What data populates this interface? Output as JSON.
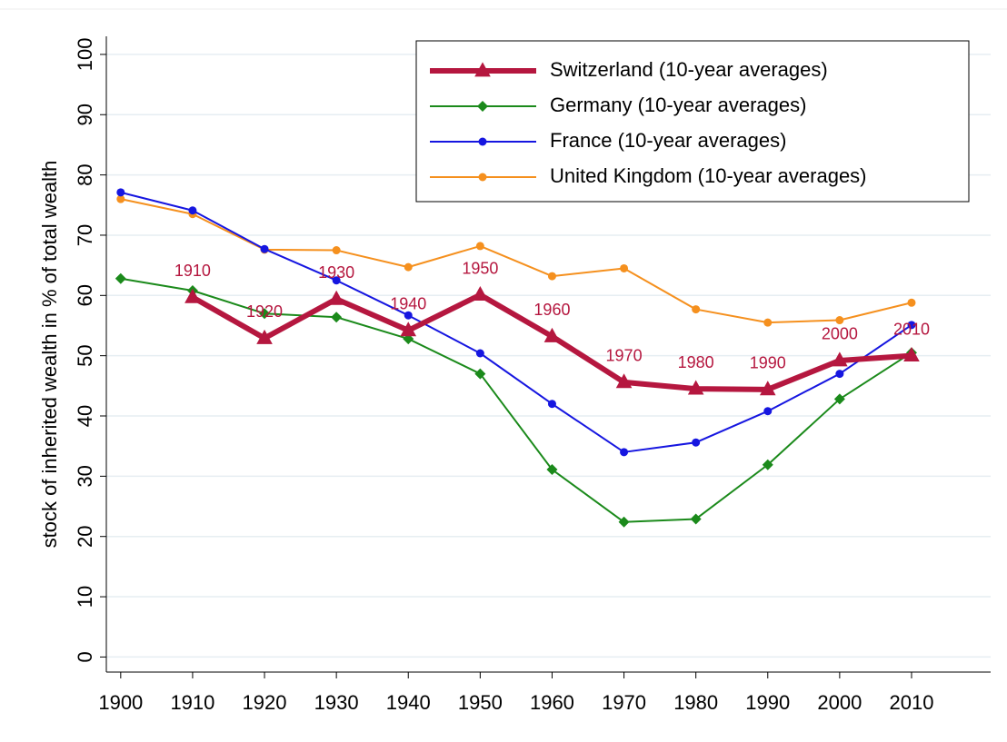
{
  "chart_data": {
    "type": "line",
    "ylabel": "stock of inherited wealth in % of total wealth",
    "x": [
      1900,
      1910,
      1920,
      1930,
      1940,
      1950,
      1960,
      1970,
      1980,
      1990,
      2000,
      2010
    ],
    "series": [
      {
        "name": "Switzerland (10-year averages)",
        "color": "#b5173f",
        "marker": "triangle",
        "point_labels": true,
        "values": [
          null,
          59.7,
          52.9,
          59.4,
          54.2,
          60.1,
          53.2,
          45.6,
          44.5,
          44.4,
          49.2,
          50.0
        ]
      },
      {
        "name": "Germany (10-year averages)",
        "color": "#1b8a1b",
        "marker": "diamond",
        "values": [
          62.8,
          60.8,
          57.0,
          56.4,
          52.8,
          47.0,
          31.1,
          22.4,
          22.9,
          31.9,
          42.8,
          50.5
        ]
      },
      {
        "name": "France (10-year averages)",
        "color": "#1616e0",
        "marker": "circle",
        "values": [
          77.1,
          74.1,
          67.7,
          62.5,
          56.7,
          50.4,
          42.0,
          34.0,
          35.6,
          40.8,
          47.0,
          55.1
        ]
      },
      {
        "name": "United Kingdom (10-year averages)",
        "color": "#f5901e",
        "marker": "circle",
        "values": [
          76.0,
          73.5,
          67.6,
          67.5,
          64.7,
          68.2,
          63.2,
          64.5,
          57.7,
          55.5,
          55.9,
          58.8
        ]
      }
    ],
    "xlim": [
      1898,
      2021
    ],
    "xticks": [
      1900,
      1910,
      1920,
      1930,
      1940,
      1950,
      1960,
      1970,
      1980,
      1990,
      2000,
      2010
    ],
    "ylim": [
      -2.5,
      103
    ],
    "yticks": [
      0,
      10,
      20,
      30,
      40,
      50,
      60,
      70,
      80,
      90,
      100
    ],
    "grid": true,
    "legend": "top-right"
  }
}
